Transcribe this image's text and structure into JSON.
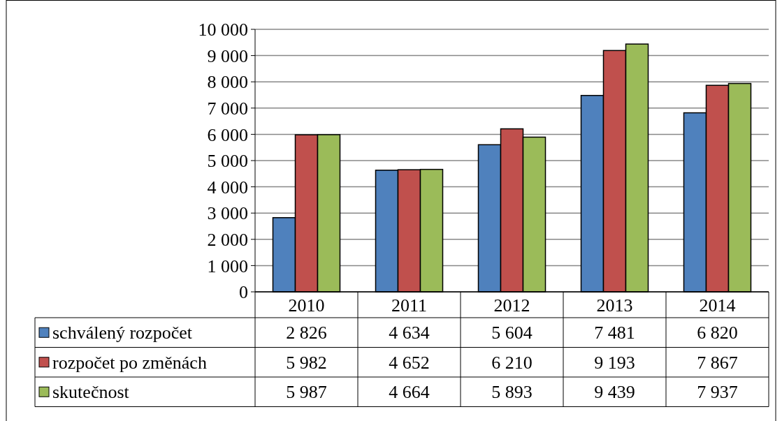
{
  "chart_data": {
    "type": "bar",
    "categories": [
      "2010",
      "2011",
      "2012",
      "2013",
      "2014"
    ],
    "series": [
      {
        "name": "schválený rozpočet",
        "color": "#4f81bd",
        "values": [
          2826,
          4634,
          5604,
          7481,
          6820
        ]
      },
      {
        "name": "rozpočet po změnách",
        "color": "#c0504d",
        "values": [
          5982,
          4652,
          6210,
          9193,
          7867
        ]
      },
      {
        "name": "skutečnost",
        "color": "#9bbb59",
        "values": [
          5987,
          4664,
          5893,
          9439,
          7937
        ]
      }
    ],
    "value_labels": [
      [
        "2 826",
        "4 634",
        "5 604",
        "7 481",
        "6 820"
      ],
      [
        "5 982",
        "4 652",
        "6 210",
        "9 193",
        "7 867"
      ],
      [
        "5 987",
        "4 664",
        "5 893",
        "9 439",
        "7 937"
      ]
    ],
    "ylim": [
      0,
      10000
    ],
    "yticks": [
      0,
      {
        "value": 1000,
        "label": "1 000"
      },
      {
        "value": 2000,
        "label": "2 000"
      },
      {
        "value": 3000,
        "label": "3 000"
      },
      {
        "value": 4000,
        "label": "4 000"
      },
      {
        "value": 5000,
        "label": "5 000"
      },
      {
        "value": 6000,
        "label": "6 000"
      },
      {
        "value": 7000,
        "label": "7 000"
      },
      {
        "value": 8000,
        "label": "8 000"
      },
      {
        "value": 9000,
        "label": "9 000"
      },
      {
        "value": 10000,
        "label": "10 000"
      }
    ],
    "grid": true,
    "legend": "bottom"
  }
}
